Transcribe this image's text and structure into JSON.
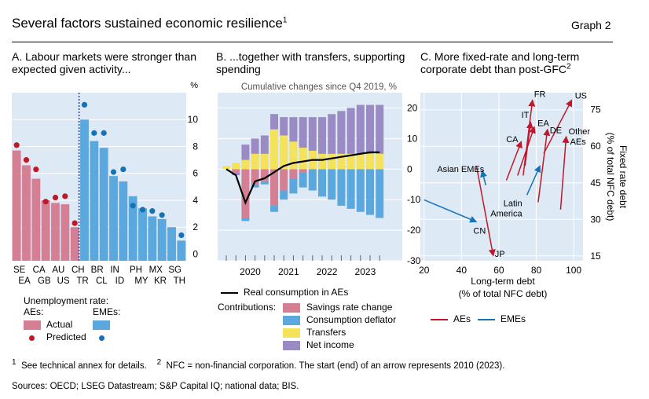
{
  "header": {
    "title": "Several factors sustained economic resilience",
    "title_sup": "1",
    "graph_label": "Graph 2"
  },
  "panels": {
    "a": {
      "title": "A. Labour markets were stronger than expected given activity...",
      "unit": "%"
    },
    "b": {
      "title": "B. ...together with transfers, supporting spending",
      "subtitle": "Cumulative changes since Q4 2019, %"
    },
    "c": {
      "title": "C. More fixed-rate and long-term corporate debt than post-GFC",
      "title_sup": "2",
      "xlabel_1": "Long-term debt",
      "xlabel_2": "(% of total NFC debt)",
      "ylabel_1": "Fixed rate debt",
      "ylabel_2": "(% of total NFC debt)"
    }
  },
  "legend_a": {
    "heading": "Unemployment rate:",
    "aes": "AEs:",
    "emes": "EMEs:",
    "actual": "Actual",
    "predicted": "Predicted",
    "ae_color": "#d47f93",
    "eme_color": "#5ba8df",
    "dot_color": "#c0182a",
    "eme_dot_color": "#1572b6"
  },
  "legend_b": {
    "line_label": "Real consumption in AEs",
    "contributions": "Contributions:",
    "items": [
      {
        "label": "Savings rate change",
        "color": "#d47f93"
      },
      {
        "label": "Consumption deflator",
        "color": "#5ba8df"
      },
      {
        "label": "Transfers",
        "color": "#f4e25a"
      },
      {
        "label": "Net income",
        "color": "#9a8bc4"
      }
    ]
  },
  "legend_c": {
    "aes": "AEs",
    "emes": "EMEs",
    "ae_color": "#c0182a",
    "eme_color": "#1572b6"
  },
  "footnotes": {
    "n1_sup": "1",
    "n1": "See technical annex for details.",
    "n2_sup": "2",
    "n2": "NFC = non-financial corporation. The start (end) of an arrow represents 2010 (2023).",
    "sources": "Sources: OECD; LSEG Datastream; S&P Capital IQ; national data; BIS."
  },
  "chart_data": [
    {
      "id": "a",
      "type": "bar",
      "categories": [
        "SE",
        "EA",
        "CA",
        "GB",
        "AU",
        "US",
        "CH",
        "TR",
        "BR",
        "CL",
        "IN",
        "ID",
        "PH",
        "MY",
        "MX",
        "KR",
        "SG",
        "TH"
      ],
      "top_labels": [
        "SE",
        "CA",
        "AU",
        "CH",
        "BR",
        "IN",
        "PH",
        "MX",
        "SG"
      ],
      "bottom_labels": [
        "EA",
        "GB",
        "US",
        "TR",
        "CL",
        "ID",
        "MY",
        "KR",
        "TH"
      ],
      "groups": [
        "AE",
        "AE",
        "AE",
        "AE",
        "AE",
        "AE",
        "AE",
        "EME",
        "EME",
        "EME",
        "EME",
        "EME",
        "EME",
        "EME",
        "EME",
        "EME",
        "EME",
        "EME"
      ],
      "series": [
        {
          "name": "Actual",
          "values": [
            7.7,
            6.6,
            5.6,
            4.0,
            3.8,
            3.7,
            2.0,
            10.0,
            8.4,
            7.9,
            5.8,
            5.4,
            4.3,
            3.4,
            2.8,
            2.6,
            2.0,
            1.0
          ]
        },
        {
          "name": "Predicted",
          "values": [
            8.1,
            7.0,
            6.3,
            3.9,
            4.2,
            4.3,
            2.3,
            11.1,
            9.0,
            9.0,
            6.1,
            6.3,
            3.6,
            3.3,
            3.2,
            2.9,
            null,
            1.4
          ]
        }
      ],
      "yticks": [
        0,
        2,
        4,
        6,
        8,
        10
      ],
      "ylim": [
        -0.5,
        12
      ]
    },
    {
      "id": "b",
      "type": "bar",
      "x_ticks": [
        "2020",
        "2021",
        "2022",
        "2023"
      ],
      "quarters": [
        "2019Q4",
        "2020Q1",
        "2020Q2",
        "2020Q3",
        "2020Q4",
        "2021Q1",
        "2021Q2",
        "2021Q3",
        "2021Q4",
        "2022Q1",
        "2022Q2",
        "2022Q3",
        "2022Q4",
        "2023Q1",
        "2023Q2",
        "2023Q3",
        "2023Q4"
      ],
      "series": [
        {
          "name": "Savings rate change",
          "values": [
            0,
            -1,
            -16,
            -5,
            -4,
            -12,
            -7,
            -3,
            -1,
            0,
            0,
            0,
            0,
            0,
            0,
            0,
            0
          ]
        },
        {
          "name": "Consumption deflator",
          "values": [
            0,
            0,
            -1,
            -1,
            -1,
            -2,
            -3,
            -5,
            -5,
            -7,
            -9,
            -10,
            -12,
            -13,
            -14,
            -15,
            -16
          ]
        },
        {
          "name": "Transfers",
          "values": [
            1,
            2,
            3,
            5,
            5,
            13,
            11,
            9,
            7,
            6,
            5,
            5,
            5,
            5,
            5,
            5,
            5
          ]
        },
        {
          "name": "Net income",
          "values": [
            0,
            -1,
            5,
            5,
            6,
            5,
            6,
            8,
            10,
            11,
            12,
            13,
            14,
            15,
            16,
            16,
            16
          ]
        },
        {
          "name": "Real consumption in AEs",
          "values": [
            0,
            -2,
            -11,
            -4,
            -3,
            -1,
            1,
            2,
            2.5,
            3,
            3,
            3.5,
            4,
            4.5,
            5,
            5.5,
            5.5
          ]
        }
      ],
      "yticks": [
        -30,
        -20,
        -10,
        0,
        10,
        20
      ],
      "ylim": [
        -30,
        25
      ]
    },
    {
      "id": "c",
      "type": "scatter",
      "xticks": [
        20,
        40,
        60,
        80,
        100
      ],
      "yticks": [
        15,
        30,
        45,
        60,
        75
      ],
      "xlim": [
        18,
        105
      ],
      "ylim": [
        13,
        82
      ],
      "series": [
        {
          "name": "AEs",
          "arrows": [
            {
              "label": "FR",
              "from": [
                73,
                48
              ],
              "to": [
                78,
                79
              ]
            },
            {
              "label": "US",
              "from": [
                84,
                57
              ],
              "to": [
                99,
                79
              ]
            },
            {
              "label": "IT",
              "from": [
                74,
                52
              ],
              "to": [
                77,
                70
              ]
            },
            {
              "label": "EA",
              "from": [
                70,
                48
              ],
              "to": [
                79,
                68
              ]
            },
            {
              "label": "DE",
              "from": [
                81,
                37
              ],
              "to": [
                86,
                67
              ]
            },
            {
              "label": "Other AEs",
              "from": [
                93,
                34
              ],
              "to": [
                96,
                64
              ]
            },
            {
              "label": "CA",
              "from": [
                64,
                46
              ],
              "to": [
                72,
                62
              ]
            },
            {
              "label": "JP",
              "from": [
                48,
                52
              ],
              "to": [
                57,
                15
              ]
            }
          ]
        },
        {
          "name": "EMEs",
          "arrows": [
            {
              "label": "Asian EMEs",
              "from": [
                53,
                44
              ],
              "to": [
                51,
                50
              ]
            },
            {
              "label": "Latin America",
              "from": [
                75,
                40
              ],
              "to": [
                82,
                52
              ]
            },
            {
              "label": "CN",
              "from": [
                20,
                38
              ],
              "to": [
                48,
                29
              ]
            }
          ]
        }
      ]
    }
  ]
}
